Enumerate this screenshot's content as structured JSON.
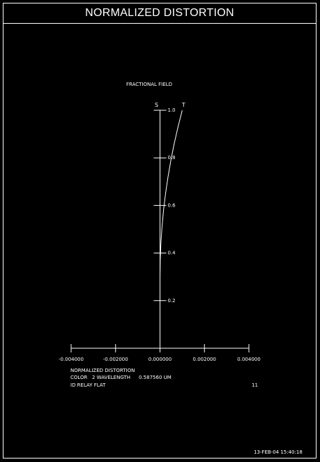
{
  "header": {
    "title": "NORMALIZED DISTORTION"
  },
  "chart_data": {
    "type": "line",
    "ylabel": "FRACTIONAL FIELD",
    "xlim": [
      -0.004,
      0.004
    ],
    "ylim": [
      0,
      1.0
    ],
    "x_ticks": [
      -0.004,
      -0.002,
      0.0,
      0.002,
      0.004
    ],
    "x_tick_labels": [
      "-0.004000",
      "-0.002000",
      "0.000000",
      "0.002000",
      "0.004000"
    ],
    "y_ticks": [
      0.2,
      0.4,
      0.6,
      0.8,
      1.0
    ],
    "y_tick_labels": [
      "0.2",
      "0.4",
      "0.6",
      "0.8",
      "1.0"
    ],
    "series_markers": {
      "s": "S",
      "t": "T"
    },
    "series": [
      {
        "id": "distortion",
        "x": [
          0.0,
          1e-05,
          4e-05,
          9e-05,
          0.00016,
          0.00025,
          0.00036,
          0.00049,
          0.00064,
          0.00081,
          0.001
        ],
        "y": [
          0.3,
          0.37,
          0.44,
          0.51,
          0.58,
          0.65,
          0.72,
          0.79,
          0.86,
          0.93,
          1.0
        ]
      }
    ]
  },
  "footer": {
    "line1": "NORMALIZED DISTORTION",
    "line2_label": "COLOR",
    "line2_value": "2 WAVELENGTH",
    "line2_wavelength": "0.587560 UM",
    "line3": "ID RELAY FLAT",
    "page_number": "11",
    "timestamp": "13-FEB-04  15:40:18"
  }
}
